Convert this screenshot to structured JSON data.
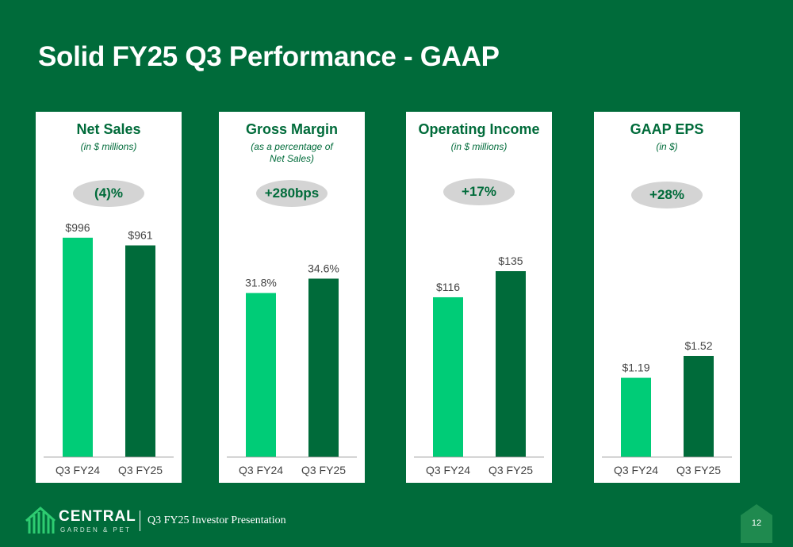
{
  "slide": {
    "title": "Solid FY25 Q3 Performance - GAAP",
    "footer_text": "Q3 FY25 Investor Presentation",
    "page_number": "12"
  },
  "logo": {
    "word": "CENTRAL",
    "sub": "GARDEN & PET"
  },
  "colors": {
    "background": "#006b3a",
    "prior_year_bar": "#00cc77",
    "current_year_bar": "#006b3a",
    "pill": "#d4d4d4"
  },
  "chart_data": [
    {
      "type": "bar",
      "title": "Net Sales",
      "subtitle": "(in $ millions)",
      "change": "(4)%",
      "categories": [
        "Q3 FY24",
        "Q3 FY25"
      ],
      "values": [
        996,
        961
      ],
      "value_labels": [
        "$996",
        "$961"
      ]
    },
    {
      "type": "bar",
      "title": "Gross Margin",
      "subtitle": "(as a percentage of Net Sales)",
      "change": "+280bps",
      "categories": [
        "Q3 FY24",
        "Q3 FY25"
      ],
      "values": [
        31.8,
        34.6
      ],
      "value_labels": [
        "31.8%",
        "34.6%"
      ]
    },
    {
      "type": "bar",
      "title": "Operating Income",
      "subtitle": "(in $ millions)",
      "change": "+17%",
      "categories": [
        "Q3 FY24",
        "Q3 FY25"
      ],
      "values": [
        116,
        135
      ],
      "value_labels": [
        "$116",
        "$135"
      ]
    },
    {
      "type": "bar",
      "title": "GAAP EPS",
      "subtitle": "(in $)",
      "change": "+28%",
      "categories": [
        "Q3 FY24",
        "Q3 FY25"
      ],
      "values": [
        1.19,
        1.52
      ],
      "value_labels": [
        "$1.19",
        "$1.52"
      ]
    }
  ]
}
